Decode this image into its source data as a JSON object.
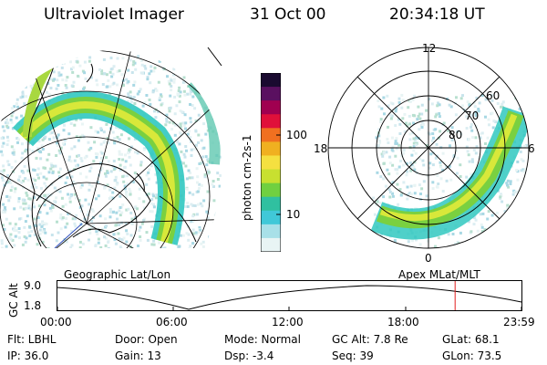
{
  "header": {
    "title": "Ultraviolet Imager",
    "date": "31 Oct 00",
    "time": "20:34:18 UT"
  },
  "colorbar": {
    "label": "photon cm-2s-1",
    "ticks": [
      "100",
      "10"
    ],
    "colors": [
      "#1a0a30",
      "#5a1060",
      "#a00050",
      "#e0103a",
      "#f07020",
      "#f0b020",
      "#f5e040",
      "#c8e030",
      "#70d040",
      "#30c0a0",
      "#40c8d8",
      "#a8e0e8",
      "#e8f4f4"
    ]
  },
  "geo_panel": {
    "caption": "Geographic Lat/Lon"
  },
  "polar_panel": {
    "caption": "Apex MLat/MLT",
    "mlt_labels": {
      "top": "12",
      "left": "18",
      "right": "6",
      "bottom": "0"
    },
    "lat_labels": [
      "60",
      "70",
      "80"
    ]
  },
  "timeline": {
    "ylabel": "GC Alt",
    "ymax": "9.0",
    "ymin": "1.8",
    "ticks": [
      "00:00",
      "06:00",
      "12:00",
      "18:00",
      "23:59"
    ],
    "current_time_fraction": 0.857
  },
  "info": {
    "flt": "Flt: LBHL",
    "ip": "IP: 36.0",
    "door": "Door: Open",
    "gain": "Gain: 13",
    "mode": "Mode: Normal",
    "dsp": "Dsp:    -3.4",
    "gcalt": "GC Alt: 7.8 Re",
    "seq": "Seq: 39",
    "glat": "GLat:  68.1",
    "glon": "GLon:  73.5"
  }
}
